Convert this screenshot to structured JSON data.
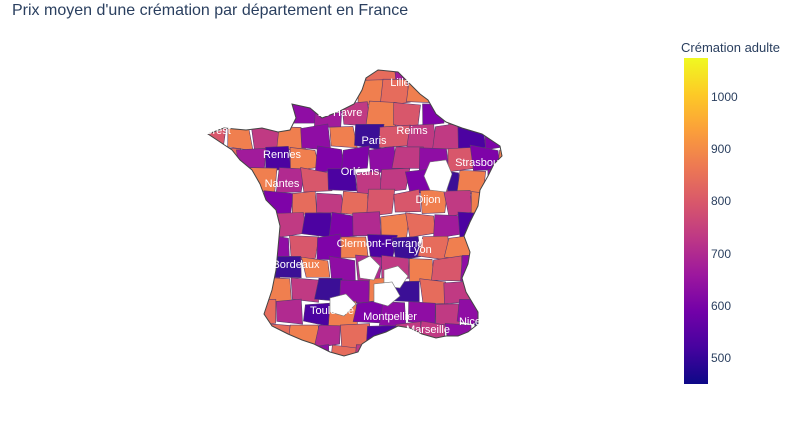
{
  "chart_data": {
    "type": "choropleth",
    "title": "Prix moyen d'une crémation par département en France",
    "colorbar": {
      "title": "Crémation adulte",
      "range": [
        450,
        1075
      ],
      "ticks": [
        500,
        600,
        700,
        800,
        900,
        1000
      ],
      "colors": [
        "#0d0887",
        "#46039f",
        "#7201a8",
        "#9c179e",
        "#bd3786",
        "#d8576b",
        "#ed7953",
        "#fb9f3a",
        "#fdca26",
        "#f0f921"
      ]
    },
    "city_labels": [
      "Lille",
      "Le Havre",
      "Brest",
      "Rennes",
      "Reims",
      "Paris",
      "Strasbourg",
      "Nantes",
      "Orléans",
      "Dijon",
      "Clermont-Ferrand",
      "Lyon",
      "Bordeaux",
      "Toulouse",
      "Montpellier",
      "Marseille",
      "Nice"
    ]
  }
}
